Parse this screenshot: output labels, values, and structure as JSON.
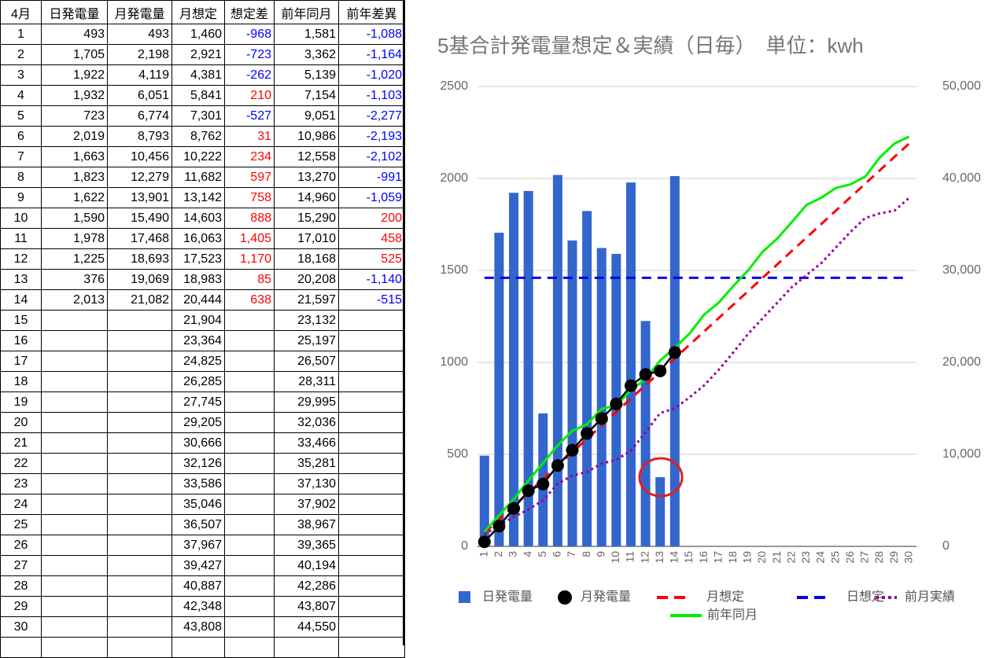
{
  "table": {
    "headers": [
      "4月",
      "日発電量",
      "月発電量",
      "月想定",
      "想定差",
      "前年同月",
      "前年差異"
    ],
    "signed_columns": [
      4,
      6
    ],
    "positive_color": "#ff0000",
    "negative_color": "#0000ff",
    "rows": [
      [
        "1",
        "493",
        "493",
        "1,460",
        "-968",
        "1,581",
        "-1,088"
      ],
      [
        "2",
        "1,705",
        "2,198",
        "2,921",
        "-723",
        "3,362",
        "-1,164"
      ],
      [
        "3",
        "1,922",
        "4,119",
        "4,381",
        "-262",
        "5,139",
        "-1,020"
      ],
      [
        "4",
        "1,932",
        "6,051",
        "5,841",
        "210",
        "7,154",
        "-1,103"
      ],
      [
        "5",
        "723",
        "6,774",
        "7,301",
        "-527",
        "9,051",
        "-2,277"
      ],
      [
        "6",
        "2,019",
        "8,793",
        "8,762",
        "31",
        "10,986",
        "-2,193"
      ],
      [
        "7",
        "1,663",
        "10,456",
        "10,222",
        "234",
        "12,558",
        "-2,102"
      ],
      [
        "8",
        "1,823",
        "12,279",
        "11,682",
        "597",
        "13,270",
        "-991"
      ],
      [
        "9",
        "1,622",
        "13,901",
        "13,142",
        "758",
        "14,960",
        "-1,059"
      ],
      [
        "10",
        "1,590",
        "15,490",
        "14,603",
        "888",
        "15,290",
        "200"
      ],
      [
        "11",
        "1,978",
        "17,468",
        "16,063",
        "1,405",
        "17,010",
        "458"
      ],
      [
        "12",
        "1,225",
        "18,693",
        "17,523",
        "1,170",
        "18,168",
        "525"
      ],
      [
        "13",
        "376",
        "19,069",
        "18,983",
        "85",
        "20,208",
        "-1,140"
      ],
      [
        "14",
        "2,013",
        "21,082",
        "20,444",
        "638",
        "21,597",
        "-515"
      ],
      [
        "15",
        null,
        null,
        "21,904",
        null,
        "23,132",
        null
      ],
      [
        "16",
        null,
        null,
        "23,364",
        null,
        "25,197",
        null
      ],
      [
        "17",
        null,
        null,
        "24,825",
        null,
        "26,507",
        null
      ],
      [
        "18",
        null,
        null,
        "26,285",
        null,
        "28,311",
        null
      ],
      [
        "19",
        null,
        null,
        "27,745",
        null,
        "29,995",
        null
      ],
      [
        "20",
        null,
        null,
        "29,205",
        null,
        "32,036",
        null
      ],
      [
        "21",
        null,
        null,
        "30,666",
        null,
        "33,466",
        null
      ],
      [
        "22",
        null,
        null,
        "32,126",
        null,
        "35,281",
        null
      ],
      [
        "23",
        null,
        null,
        "33,586",
        null,
        "37,130",
        null
      ],
      [
        "24",
        null,
        null,
        "35,046",
        null,
        "37,902",
        null
      ],
      [
        "25",
        null,
        null,
        "36,507",
        null,
        "38,967",
        null
      ],
      [
        "26",
        null,
        null,
        "37,967",
        null,
        "39,365",
        null
      ],
      [
        "27",
        null,
        null,
        "39,427",
        null,
        "40,194",
        null
      ],
      [
        "28",
        null,
        null,
        "40,887",
        null,
        "42,286",
        null
      ],
      [
        "29",
        null,
        null,
        "42,348",
        null,
        "43,807",
        null
      ],
      [
        "30",
        null,
        null,
        "43,808",
        null,
        "44,550",
        null
      ]
    ]
  },
  "chart_data": {
    "type": "combo",
    "title": "5基合計発電量想定＆実績（日毎）　単位：kwh",
    "categories": [
      "1",
      "2",
      "3",
      "4",
      "5",
      "6",
      "7",
      "8",
      "9",
      "10",
      "11",
      "12",
      "13",
      "14",
      "15",
      "16",
      "17",
      "18",
      "19",
      "20",
      "21",
      "22",
      "23",
      "24",
      "25",
      "26",
      "27",
      "28",
      "29",
      "30"
    ],
    "ylim": [
      0,
      2500
    ],
    "yticks": [
      0,
      500,
      1000,
      1500,
      2000,
      2500
    ],
    "y2lim": [
      0,
      50000
    ],
    "y2ticks": [
      0,
      {
        "value": 10000,
        "label": "10,000"
      },
      {
        "value": 20000,
        "label": "20,000"
      },
      {
        "value": 30000,
        "label": "30,000"
      },
      {
        "value": 40000,
        "label": "40,000"
      },
      {
        "value": 50000,
        "label": "50,000"
      }
    ],
    "grid": true,
    "legend": "bottom",
    "series": [
      {
        "name": "日発電量",
        "style": "bar",
        "color": "#3366cc",
        "axis": "y",
        "values": [
          493,
          1705,
          1922,
          1932,
          723,
          2019,
          1663,
          1823,
          1622,
          1590,
          1978,
          1225,
          376,
          2013,
          null,
          null,
          null,
          null,
          null,
          null,
          null,
          null,
          null,
          null,
          null,
          null,
          null,
          null,
          null,
          null
        ]
      },
      {
        "name": "月発電量",
        "style": "dots",
        "color": "#000000",
        "axis": "y2",
        "values": [
          493,
          2198,
          4119,
          6051,
          6774,
          8793,
          10456,
          12279,
          13901,
          15490,
          17468,
          18693,
          19069,
          21082,
          null,
          null,
          null,
          null,
          null,
          null,
          null,
          null,
          null,
          null,
          null,
          null,
          null,
          null,
          null,
          null
        ]
      },
      {
        "name": "月想定",
        "style": "dashed",
        "color": "#ff0000",
        "axis": "y2",
        "values": [
          1460,
          2921,
          4381,
          5841,
          7301,
          8762,
          10222,
          11682,
          13142,
          14603,
          16063,
          17523,
          18983,
          20444,
          21904,
          23364,
          24825,
          26285,
          27745,
          29205,
          30666,
          32126,
          33586,
          35046,
          36507,
          37967,
          39427,
          40887,
          42348,
          43808
        ]
      },
      {
        "name": "日想定",
        "style": "dashed",
        "color": "#0000ee",
        "axis": "y",
        "values": [
          1460,
          1460,
          1460,
          1460,
          1460,
          1460,
          1460,
          1460,
          1460,
          1460,
          1460,
          1460,
          1460,
          1460,
          1460,
          1460,
          1460,
          1460,
          1460,
          1460,
          1460,
          1460,
          1460,
          1460,
          1460,
          1460,
          1460,
          1460,
          1460,
          1460
        ]
      },
      {
        "name": "前月実績",
        "style": "dotted",
        "color": "#990099",
        "axis": "y2",
        "values": [
          1300,
          2300,
          3200,
          4000,
          5000,
          6800,
          7700,
          8100,
          9000,
          9400,
          10400,
          12400,
          14500,
          15000,
          16200,
          17500,
          19200,
          21100,
          23100,
          24800,
          26500,
          28200,
          29500,
          30800,
          32500,
          34200,
          35700,
          36200,
          36500,
          37900
        ]
      },
      {
        "name": "前年同月",
        "style": "solid",
        "color": "#00ee00",
        "axis": "y2",
        "values": [
          1581,
          3362,
          5139,
          7154,
          9051,
          10986,
          12558,
          13270,
          14960,
          15290,
          17010,
          18168,
          20208,
          21597,
          23132,
          25197,
          26507,
          28311,
          29995,
          32036,
          33466,
          35281,
          37130,
          37902,
          38967,
          39365,
          40194,
          42286,
          43807,
          44550
        ]
      }
    ]
  }
}
